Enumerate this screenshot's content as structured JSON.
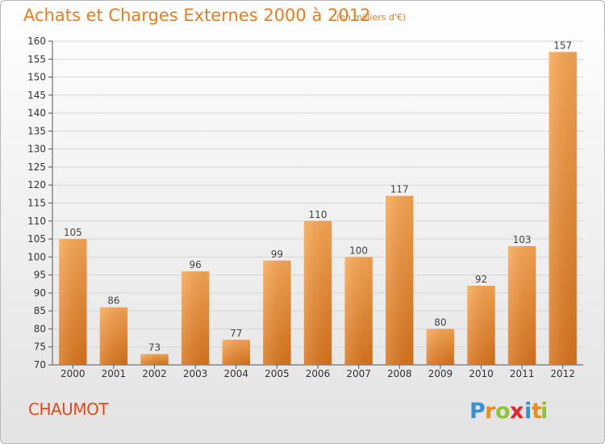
{
  "header": {
    "title": "Achats et Charges Externes 2000 à 2012",
    "subtitle": "(en milliers d'€)"
  },
  "footer": {
    "location": "CHAUMOT",
    "logo_text": "Proxiti"
  },
  "colors": {
    "bar_light": "#f9a753",
    "bar_dark": "#d9741c",
    "title": "#f07a1a",
    "location": "#e14b1c",
    "grid": "#d6d6d6"
  },
  "chart_data": {
    "type": "bar",
    "categories": [
      "2000",
      "2001",
      "2002",
      "2003",
      "2004",
      "2005",
      "2006",
      "2007",
      "2008",
      "2009",
      "2010",
      "2011",
      "2012"
    ],
    "values": [
      105,
      86,
      73,
      96,
      77,
      99,
      110,
      100,
      117,
      80,
      92,
      103,
      157
    ],
    "data_labels": [
      "105",
      "86",
      "73",
      "96",
      "77",
      "99",
      "110",
      "100",
      "117",
      "80",
      "92",
      "103",
      "157"
    ],
    "title": "Achats et Charges Externes 2000 à 2012",
    "xlabel": "",
    "ylabel": "",
    "ylim": [
      70,
      160
    ],
    "yticks": [
      70,
      75,
      80,
      85,
      90,
      95,
      100,
      105,
      110,
      115,
      120,
      125,
      130,
      135,
      140,
      145,
      150,
      155,
      160
    ],
    "grid": true,
    "legend": "none"
  }
}
